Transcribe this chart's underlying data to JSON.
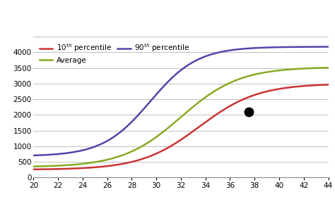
{
  "xlim": [
    20,
    44
  ],
  "ylim": [
    0,
    4500
  ],
  "xticks": [
    20,
    22,
    24,
    26,
    28,
    30,
    32,
    34,
    36,
    38,
    40,
    42,
    44
  ],
  "yticks": [
    0,
    500,
    1000,
    1500,
    2000,
    2500,
    3000,
    3500,
    4000,
    4500
  ],
  "dot_x": 37.5,
  "dot_y": 2100,
  "line_colors": [
    "#cc3333",
    "#88aa22",
    "#5544aa"
  ],
  "grid_color": "#c0c0c0",
  "p10_params": {
    "a": 2750,
    "b": 0.42,
    "c": 33.5,
    "d": 250
  },
  "avg_params": {
    "a": 3200,
    "b": 0.42,
    "c": 32.0,
    "d": 330
  },
  "p90_params": {
    "a": 3500,
    "b": 0.52,
    "c": 29.5,
    "d": 680
  }
}
